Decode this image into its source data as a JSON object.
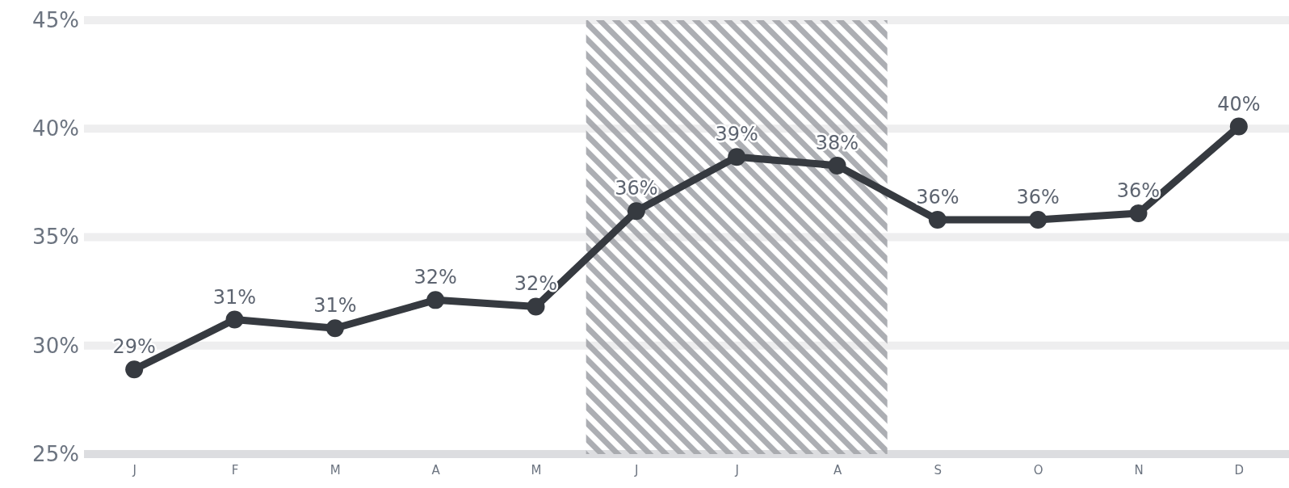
{
  "chart_data": {
    "type": "line",
    "categories": [
      "J",
      "F",
      "M",
      "A",
      "M",
      "J",
      "J",
      "A",
      "S",
      "O",
      "N",
      "D"
    ],
    "ylim": [
      25,
      45
    ],
    "yticks": [
      {
        "value": 25,
        "label": "25%"
      },
      {
        "value": 30,
        "label": "30%"
      },
      {
        "value": 35,
        "label": "35%"
      },
      {
        "value": 40,
        "label": "40%"
      },
      {
        "value": 45,
        "label": "45%"
      }
    ],
    "series": [
      {
        "color": "#363a40",
        "values": [
          28.9,
          31.2,
          30.8,
          32.1,
          31.8,
          36.2,
          38.7,
          38.3,
          35.8,
          35.8,
          36.1,
          40.1
        ],
        "value_labels": [
          "29%",
          "31%",
          "31%",
          "32%",
          "32%",
          "36%",
          "39%",
          "38%",
          "36%",
          "36%",
          "36%",
          "40%"
        ]
      }
    ],
    "grid": "y",
    "marker": "circle",
    "line_style": "solid"
  }
}
